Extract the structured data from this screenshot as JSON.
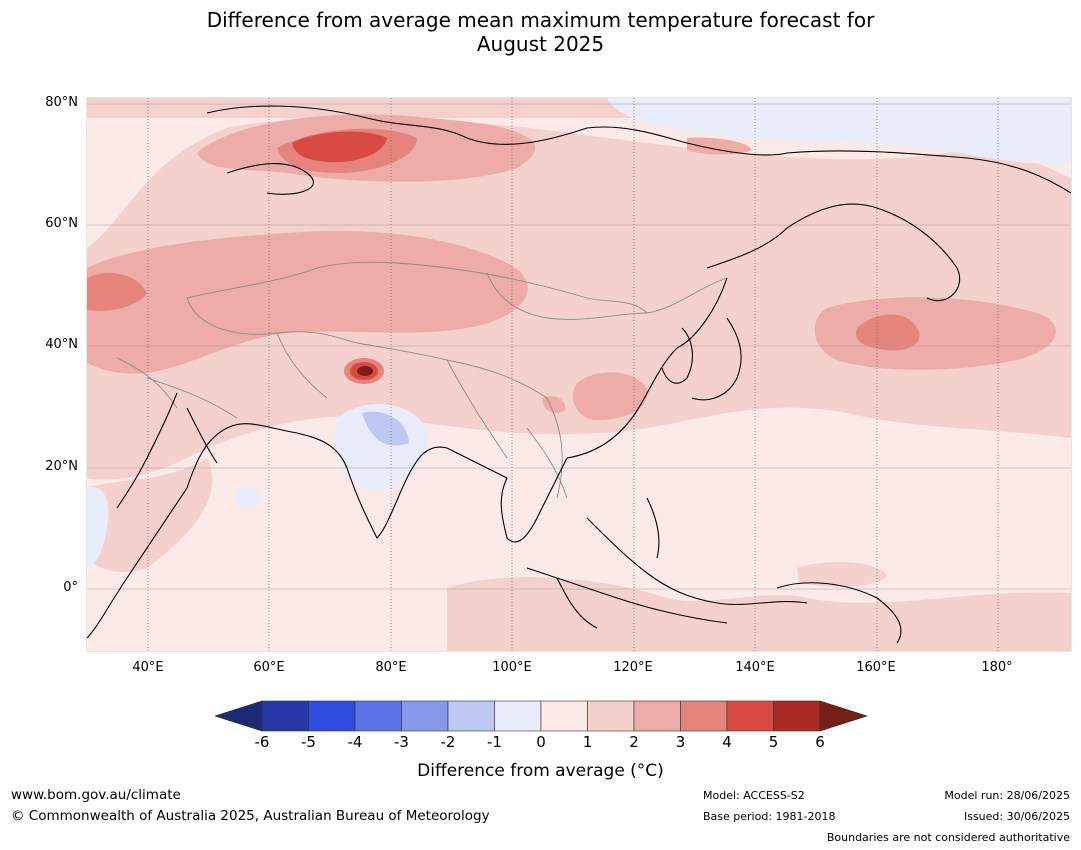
{
  "title_line1": "Difference from average mean maximum temperature forecast for",
  "title_line2": "August 2025",
  "lat_labels": [
    "80°N",
    "60°N",
    "40°N",
    "20°N",
    "0°"
  ],
  "lon_labels": [
    "40°E",
    "60°E",
    "80°E",
    "100°E",
    "120°E",
    "140°E",
    "160°E",
    "180°"
  ],
  "colorbar": {
    "ticks": [
      "-6",
      "-5",
      "-4",
      "-3",
      "-2",
      "-1",
      "0",
      "1",
      "2",
      "3",
      "4",
      "5",
      "6"
    ],
    "colors": [
      "#273aa8",
      "#2f4ee0",
      "#5a72e4",
      "#8599ea",
      "#bfc8f3",
      "#e8ecfb",
      "#fceae8",
      "#f5d1ce",
      "#edaca7",
      "#e5837d",
      "#d94b42",
      "#a82a22"
    ],
    "under_color": "#1b2b78",
    "over_color": "#7a1e18",
    "label": "Difference from average (°C)"
  },
  "footer": {
    "url": "www.bom.gov.au/climate",
    "copyright": "© Commonwealth of Australia 2025, Australian Bureau of Meteorology",
    "model": "Model: ACCESS-S2",
    "base_period": "Base period: 1981-2018",
    "model_run": "Model run: 28/06/2025",
    "issued": "Issued: 30/06/2025",
    "disclaimer": "Boundaries are not considered authoritative"
  },
  "map_data": {
    "extent_lon": [
      30,
      192
    ],
    "extent_lat": [
      -10,
      80
    ],
    "projection": "equirectangular",
    "background_anomaly_range": "0 to 1",
    "features": [
      {
        "region": "Northern Russia / Kara Sea",
        "anomaly_range": "3 to 5"
      },
      {
        "region": "Western Kazakhstan / Caspian",
        "anomaly_range": "3 to 4"
      },
      {
        "region": "North Pacific near 165°E 40°N",
        "anomaly_range": "3 to 4"
      },
      {
        "region": "Kashmir / western Himalaya",
        "anomaly_range": "5 to 6+"
      },
      {
        "region": "Eastern China",
        "anomaly_range": "2 to 3"
      },
      {
        "region": "Northern India",
        "anomaly_range": "-2 to 0"
      },
      {
        "region": "Arctic Ocean / East Siberian Sea",
        "anomaly_range": "-1 to 0"
      },
      {
        "region": "East Africa coast",
        "anomaly_range": "-1 to 0"
      }
    ]
  }
}
